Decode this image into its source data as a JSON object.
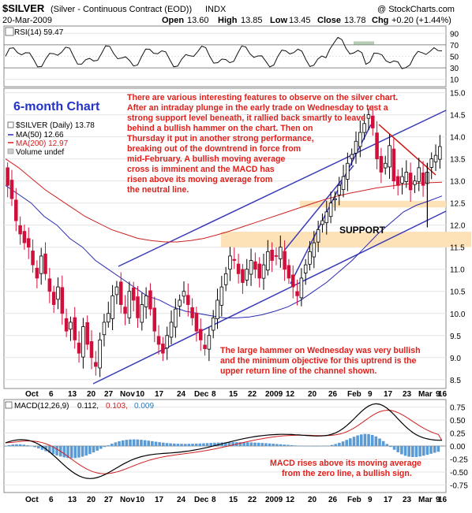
{
  "header": {
    "ticker": "$SILVER",
    "description": "(Silver - Continuous Contract (EOD))",
    "exchange": "INDX",
    "source": "@ StockCharts.com",
    "date": "20-Mar-2009",
    "open_label": "Open",
    "open": "13.60",
    "high_label": "High",
    "high": "13.85",
    "low_label": "Low",
    "low": "13.45",
    "close_label": "Close",
    "close": "13.78",
    "chg_label": "Chg",
    "chg": "+0.20 (+1.44%)"
  },
  "colors": {
    "up_candle": "#000000",
    "down_candle": "#d0103a",
    "ma50": "#2a2ab0",
    "ma200": "#d02020",
    "channel": "#3a3ab8",
    "support_band": "#fde2b8",
    "annotation": "#e0201c",
    "macd_hist": "#5b9bd5"
  },
  "rsi": {
    "label": "RSI(14) 59.47",
    "ticks": [
      "90",
      "70",
      "50",
      "30",
      "10"
    ]
  },
  "price_panel": {
    "title_overlay": "6-month Chart",
    "legend": {
      "symbol": "$SILVER (Daily) 13.78",
      "ma50": "MA(50) 12.66",
      "ma200": "MA(200) 12.97",
      "volume": "Volume undef"
    },
    "yticks": [
      "15.0",
      "14.5",
      "14.0",
      "13.5",
      "13.0",
      "12.5",
      "12.0",
      "11.5",
      "11.0",
      "10.5",
      "10.0",
      "9.5",
      "9.0",
      "8.5"
    ],
    "support_label": "SUPPORT",
    "annotation_top": [
      "There are various interesting features to observe on the silver chart.",
      "After an intraday plunge in the early trade on Wednesday to test a",
      "strong support level beneath, it rallied back smartly to leave",
      "behind a bullish hammer on the chart. Then on",
      "Thursday it put in another strong performance,",
      "breaking out of the downtrend in force from",
      " mid-February. A bullish moving average",
      "cross is imminent and the MACD has",
      "risen above its moving average from",
      "the neutral line."
    ],
    "annotation_bottom": [
      "The large hammer on Wednesday was very bullish",
      "and the minimum objective for this uptrend is the",
      "upper return line of the channel shown."
    ]
  },
  "macd": {
    "label_name": "MACD(12,26,9)",
    "v1": "0.112,",
    "v2": "0.103,",
    "v3": "0.009",
    "ticks": [
      "0.75",
      "0.50",
      "0.25",
      "0.00",
      "-0.25",
      "-0.50",
      "-0.75"
    ],
    "annotation": [
      "MACD rises above its moving average",
      "from the zero line, a bullish sign."
    ]
  },
  "xaxis": [
    "Oct",
    "6",
    "13",
    "20",
    "27",
    "Nov",
    "10",
    "17",
    "24",
    "Dec",
    "8",
    "15",
    "22",
    "2009",
    "12",
    "20",
    "26",
    "Feb",
    "9",
    "17",
    "23",
    "Mar",
    "9",
    "16"
  ],
  "chart_data": {
    "type": "candlestick",
    "period": "6-month",
    "x_range": [
      "2008-09-29",
      "2009-03-20"
    ],
    "price_ylim": [
      8.3,
      15.1
    ],
    "rsi_ylim": [
      0,
      100
    ],
    "macd_ylim": [
      -0.85,
      0.85
    ],
    "support_zone": [
      11.5,
      11.85
    ],
    "resistance_zone": [
      12.4,
      12.55
    ],
    "price_close": [
      12.9,
      12.6,
      12.1,
      11.8,
      11.6,
      11.5,
      11.1,
      10.8,
      11.3,
      10.9,
      10.5,
      10.2,
      10.6,
      10.0,
      9.6,
      9.8,
      9.4,
      9.1,
      9.7,
      9.3,
      9.0,
      8.8,
      9.4,
      9.8,
      10.0,
      10.4,
      10.6,
      10.2,
      10.0,
      10.5,
      10.3,
      9.9,
      10.2,
      10.4,
      10.1,
      9.6,
      9.3,
      9.1,
      9.5,
      9.8,
      10.1,
      10.3,
      10.5,
      10.2,
      9.9,
      9.6,
      9.4,
      9.2,
      9.5,
      9.9,
      10.3,
      10.6,
      10.9,
      11.3,
      11.2,
      10.9,
      10.7,
      11.0,
      11.2,
      11.0,
      10.8,
      11.1,
      11.4,
      11.2,
      11.3,
      11.5,
      11.0,
      10.8,
      10.6,
      10.4,
      10.8,
      11.1,
      11.4,
      11.6,
      11.9,
      12.1,
      12.3,
      12.5,
      12.6,
      12.9,
      13.1,
      13.4,
      13.6,
      13.9,
      14.1,
      14.3,
      14.5,
      14.2,
      13.5,
      13.2,
      13.4,
      13.8,
      13.0,
      12.9,
      13.1,
      13.2,
      12.8,
      13.0,
      13.3,
      12.9,
      13.2,
      13.5,
      13.58,
      13.78
    ],
    "ma50": [
      12.9,
      12.7,
      12.5,
      12.2,
      12.0,
      11.7,
      11.5,
      11.2,
      11.0,
      10.8,
      10.6,
      10.4,
      10.3,
      10.15,
      10.05,
      10.0,
      9.95,
      9.9,
      9.9,
      9.92,
      9.97,
      10.05,
      10.15,
      10.3,
      10.5,
      10.7,
      10.95,
      11.2,
      11.5,
      11.8,
      12.05,
      12.3,
      12.45,
      12.55,
      12.66
    ],
    "ma200": [
      13.5,
      13.3,
      13.05,
      12.8,
      12.6,
      12.4,
      12.2,
      12.05,
      11.9,
      11.8,
      11.7,
      11.65,
      11.62,
      11.62,
      11.65,
      11.7,
      11.78,
      11.87,
      11.97,
      12.07,
      12.17,
      12.27,
      12.37,
      12.47,
      12.57,
      12.65,
      12.72,
      12.78,
      12.84,
      12.88,
      12.92,
      12.95,
      12.96,
      12.97
    ],
    "rsi_last": 59.47,
    "macd_last": 0.112,
    "macd_signal_last": 0.103,
    "macd_hist_last": 0.009
  }
}
